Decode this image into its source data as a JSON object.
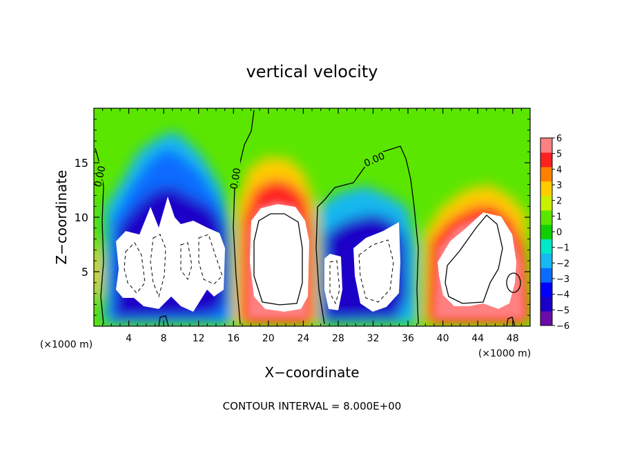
{
  "chart_data": {
    "type": "heatmap",
    "title": "vertical velocity",
    "xlabel": "X−coordinate",
    "ylabel": "Z−coordinate",
    "x_unit_label": "(×1000 m)",
    "z_unit_label": "(×1000 m)",
    "xlim": [
      0,
      50
    ],
    "ylim": [
      0,
      20
    ],
    "x_ticks": [
      "4",
      "8",
      "12",
      "16",
      "20",
      "24",
      "28",
      "32",
      "36",
      "40",
      "44",
      "48"
    ],
    "y_ticks": [
      "5",
      "10",
      "15"
    ],
    "footer": "CONTOUR INTERVAL = 8.000E+00",
    "contour_label": "0.00",
    "colorbar": {
      "min": -6,
      "max": 6,
      "ticks": [
        "6",
        "5",
        "4",
        "3",
        "2",
        "1",
        "0",
        "−1",
        "−2",
        "−3",
        "−4",
        "−5",
        "−6"
      ],
      "colors": [
        "#6a0da8",
        "#1a00c8",
        "#0000ff",
        "#0a6cff",
        "#18b8f0",
        "#00e8c8",
        "#10d000",
        "#5be600",
        "#c8f000",
        "#ffcc00",
        "#ff8000",
        "#ff2020",
        "#ff8080"
      ]
    },
    "features": [
      {
        "name": "downdraft-1",
        "sign": "negative",
        "x_range": [
          2,
          16
        ],
        "z_range": [
          1,
          17
        ]
      },
      {
        "name": "updraft-1",
        "sign": "positive",
        "x_range": [
          17,
          25
        ],
        "z_range": [
          0.5,
          14
        ]
      },
      {
        "name": "downdraft-2",
        "sign": "negative",
        "x_range": [
          26,
          36
        ],
        "z_range": [
          0.5,
          13
        ]
      },
      {
        "name": "updraft-2",
        "sign": "positive",
        "x_range": [
          38,
          50
        ],
        "z_range": [
          0.5,
          14
        ]
      }
    ]
  }
}
